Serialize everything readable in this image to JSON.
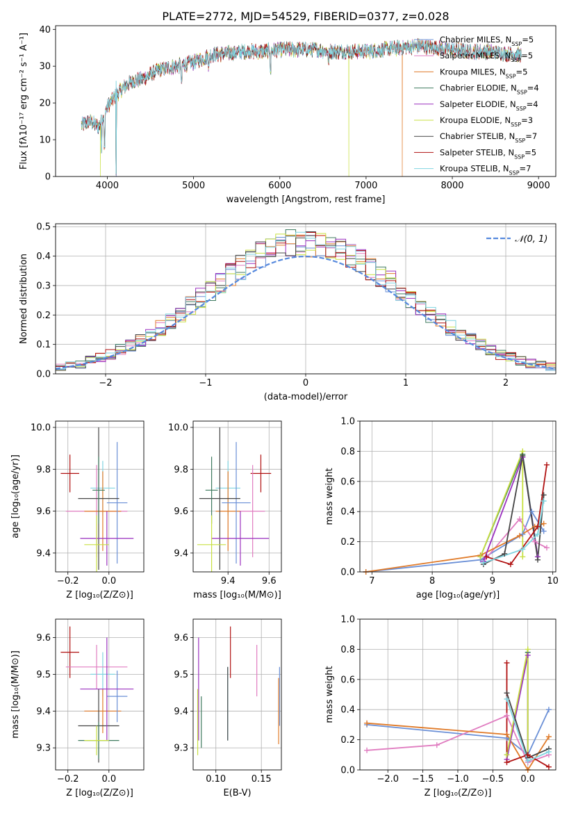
{
  "palette": {
    "Chabrier MILES": "#6a8fd6",
    "Salpeter MILES": "#e07cc0",
    "Kroupa MILES": "#e07a28",
    "Chabrier ELODIE": "#3e7a5e",
    "Salpeter ELODIE": "#9a2fbf",
    "Kroupa ELODIE": "#c8e040",
    "Chabrier STELIB": "#444444",
    "Salpeter STELIB": "#b01010",
    "Kroupa STELIB": "#7fd4e0"
  },
  "chart_data": [
    {
      "id": "spectrum",
      "type": "line",
      "title": "PLATE=2772, MJD=54529, FIBERID=0377, z=0.028",
      "xlabel": "wavelength [Angstrom, rest frame]",
      "ylabel": "Flux [fλ10⁻¹⁷ erg cm⁻² s⁻¹ A⁻¹]",
      "xlim": [
        3400,
        9200
      ],
      "ylim": [
        0,
        41
      ],
      "xticks": [
        4000,
        5000,
        6000,
        7000,
        8000,
        9000
      ],
      "yticks": [
        0,
        10,
        20,
        30,
        40
      ],
      "grid": false,
      "legend_position": "right",
      "legend": [
        "Chabrier MILES, N_SSP=5",
        "Salpeter MILES, N_SSP=5",
        "Kroupa MILES, N_SSP=5",
        "Chabrier ELODIE, N_SSP=4",
        "Salpeter ELODIE, N_SSP=4",
        "Kroupa ELODIE, N_SSP=3",
        "Chabrier STELIB, N_SSP=7",
        "Salpeter STELIB, N_SSP=5",
        "Kroupa STELIB, N_SSP=7"
      ],
      "continuum": {
        "x": [
          3700,
          3800,
          3900,
          4000,
          4100,
          4200,
          4300,
          4400,
          4600,
          4800,
          5000,
          5200,
          5400,
          5600,
          5800,
          6000,
          6200,
          6400,
          6600,
          6800,
          7000,
          7200,
          7400,
          7600,
          7800,
          8000,
          8200,
          8400,
          8600,
          8800
        ],
        "y": [
          14,
          15,
          13.5,
          19,
          22,
          24.5,
          26,
          26.5,
          29,
          30,
          31,
          33,
          33.5,
          34,
          34,
          34.5,
          34.5,
          34.5,
          34,
          34,
          34,
          34.5,
          35,
          35.5,
          35,
          34.5,
          34,
          34,
          33.5,
          33
        ]
      },
      "absorption_dips": [
        {
          "x": 3934,
          "y": 7
        },
        {
          "x": 3968,
          "y": 7
        },
        {
          "x": 4102,
          "y": 0
        },
        {
          "x": 4861,
          "y": 25
        },
        {
          "x": 5175,
          "y": 29
        },
        {
          "x": 5893,
          "y": 28
        },
        {
          "x": 6563,
          "y": 30
        }
      ],
      "artifacts": [
        {
          "x": 3920,
          "y": 0,
          "series": "Kroupa ELODIE"
        },
        {
          "x": 6800,
          "y": 0,
          "series": "Kroupa ELODIE"
        },
        {
          "x": 7420,
          "y": 0,
          "series": "Kroupa MILES"
        }
      ]
    },
    {
      "id": "residuals",
      "type": "step",
      "xlabel": "(data-model)/error",
      "ylabel": "Normed distribution",
      "xlim": [
        -2.5,
        2.5
      ],
      "ylim": [
        0,
        0.51
      ],
      "xticks": [
        -2,
        -1,
        0,
        1,
        2
      ],
      "xtick_labels": [
        "−2",
        "−1",
        "0",
        "1",
        "2"
      ],
      "yticks": [
        0.0,
        0.1,
        0.2,
        0.3,
        0.4,
        0.5
      ],
      "ytick_labels": [
        "0.0",
        "0.1",
        "0.2",
        "0.3",
        "0.4",
        "0.5"
      ],
      "grid": true,
      "legend": [
        "𝒩(0, 1)"
      ],
      "legend_position": "top-right",
      "bin_width": 0.1,
      "reference_curve": {
        "type": "normal",
        "mu": 0,
        "sigma": 1,
        "color": "#5588dd"
      }
    },
    {
      "id": "age_vs_Z",
      "type": "errorbar",
      "xlabel": "Z [log₁₀(Z/Z⊙)]",
      "ylabel": "age  [log₁₀(age/yr)]",
      "xlim": [
        -0.26,
        0.17
      ],
      "ylim": [
        9.31,
        10.03
      ],
      "xticks": [
        -0.2,
        0.0
      ],
      "xtick_labels": [
        "−0.2",
        "0.0"
      ],
      "yticks": [
        9.4,
        9.6,
        9.8,
        10.0
      ],
      "ytick_labels": [
        "9.4",
        "9.6",
        "9.8",
        "10.0"
      ],
      "grid": true,
      "points": [
        {
          "series": "Salpeter STELIB",
          "x": -0.19,
          "y": 9.78,
          "xerr": 0.045,
          "yerr": 0.09
        },
        {
          "series": "Kroupa STELIB",
          "x": -0.03,
          "y": 9.71,
          "xerr": 0.06,
          "yerr": 0.13
        },
        {
          "series": "Salpeter MILES",
          "x": -0.06,
          "y": 9.6,
          "xerr": 0.15,
          "yerr": 0.22
        },
        {
          "series": "Kroupa MILES",
          "x": -0.03,
          "y": 9.6,
          "xerr": 0.09,
          "yerr": 0.19
        },
        {
          "series": "Chabrier MILES",
          "x": 0.04,
          "y": 9.64,
          "xerr": 0.05,
          "yerr": 0.29
        },
        {
          "series": "Chabrier STELIB",
          "x": -0.05,
          "y": 9.66,
          "xerr": 0.1,
          "yerr": 0.34
        },
        {
          "series": "Chabrier ELODIE",
          "x": -0.05,
          "y": 9.7,
          "xerr": 0.03,
          "yerr": 0.16
        },
        {
          "series": "Salpeter ELODIE",
          "x": -0.01,
          "y": 9.47,
          "xerr": 0.13,
          "yerr": 0.13
        },
        {
          "series": "Kroupa ELODIE",
          "x": -0.06,
          "y": 9.44,
          "xerr": 0.06,
          "yerr": 0.14
        }
      ]
    },
    {
      "id": "age_vs_mass",
      "type": "errorbar",
      "xlabel": "mass [log₁₀(M/M⊙)]",
      "xlim": [
        9.23,
        9.66
      ],
      "ylim": [
        9.31,
        10.03
      ],
      "xticks": [
        9.4,
        9.6
      ],
      "xtick_labels": [
        "9.4",
        "9.6"
      ],
      "yticks": [
        9.4,
        9.6,
        9.8,
        10.0
      ],
      "ytick_labels": [
        "9.4",
        "9.6",
        "9.8",
        "10.0"
      ],
      "grid": true,
      "points": [
        {
          "series": "Salpeter STELIB",
          "x": 9.56,
          "y": 9.78,
          "xerr": 0.05,
          "yerr": 0.09
        },
        {
          "series": "Kroupa STELIB",
          "x": 9.4,
          "y": 9.71,
          "xerr": 0.06,
          "yerr": 0.13
        },
        {
          "series": "Salpeter MILES",
          "x": 9.52,
          "y": 9.6,
          "xerr": 0.06,
          "yerr": 0.22
        },
        {
          "series": "Kroupa MILES",
          "x": 9.4,
          "y": 9.6,
          "xerr": 0.06,
          "yerr": 0.19
        },
        {
          "series": "Chabrier MILES",
          "x": 9.44,
          "y": 9.64,
          "xerr": 0.07,
          "yerr": 0.29
        },
        {
          "series": "Chabrier STELIB",
          "x": 9.36,
          "y": 9.66,
          "xerr": 0.1,
          "yerr": 0.34
        },
        {
          "series": "Chabrier ELODIE",
          "x": 9.32,
          "y": 9.7,
          "xerr": 0.03,
          "yerr": 0.16
        },
        {
          "series": "Salpeter ELODIE",
          "x": 9.46,
          "y": 9.47,
          "xerr": 0.14,
          "yerr": 0.13
        },
        {
          "series": "Kroupa ELODIE",
          "x": 9.32,
          "y": 9.44,
          "xerr": 0.07,
          "yerr": 0.14
        }
      ]
    },
    {
      "id": "weight_vs_age",
      "type": "line",
      "xlabel": "age  [log₁₀(age/yr)]",
      "ylabel": "mass weight",
      "xlim": [
        6.8,
        10.05
      ],
      "ylim": [
        0,
        1.0
      ],
      "xticks": [
        7,
        8,
        9,
        10
      ],
      "xtick_labels": [
        "7",
        "8",
        "9",
        "10"
      ],
      "yticks": [
        0.0,
        0.2,
        0.4,
        0.6,
        0.8,
        1.0
      ],
      "ytick_labels": [
        "0.0",
        "0.2",
        "0.4",
        "0.6",
        "0.8",
        "1.0"
      ],
      "grid": true,
      "series": [
        {
          "name": "Chabrier MILES",
          "points": [
            [
              6.9,
              0.0
            ],
            [
              8.8,
              0.08
            ],
            [
              9.5,
              0.25
            ],
            [
              9.65,
              0.4
            ],
            [
              9.85,
              0.27
            ]
          ]
        },
        {
          "name": "Salpeter MILES",
          "points": [
            [
              8.85,
              0.07
            ],
            [
              9.45,
              0.35
            ],
            [
              9.7,
              0.2
            ],
            [
              9.9,
              0.16
            ]
          ]
        },
        {
          "name": "Kroupa MILES",
          "points": [
            [
              6.9,
              0.0
            ],
            [
              8.8,
              0.11
            ],
            [
              9.45,
              0.24
            ],
            [
              9.7,
              0.3
            ],
            [
              9.85,
              0.32
            ]
          ]
        },
        {
          "name": "Chabrier ELODIE",
          "points": [
            [
              8.8,
              0.1
            ],
            [
              9.5,
              0.78
            ],
            [
              9.75,
              0.1
            ]
          ]
        },
        {
          "name": "Salpeter ELODIE",
          "points": [
            [
              8.85,
              0.07
            ],
            [
              9.5,
              0.76
            ],
            [
              9.75,
              0.1
            ]
          ]
        },
        {
          "name": "Kroupa ELODIE",
          "points": [
            [
              8.8,
              0.1
            ],
            [
              9.5,
              0.8
            ],
            [
              9.5,
              0.1
            ]
          ]
        },
        {
          "name": "Chabrier STELIB",
          "points": [
            [
              8.85,
              0.05
            ],
            [
              9.2,
              0.12
            ],
            [
              9.5,
              0.77
            ],
            [
              9.75,
              0.08
            ],
            [
              9.85,
              0.51
            ]
          ]
        },
        {
          "name": "Salpeter STELIB",
          "points": [
            [
              8.9,
              0.1
            ],
            [
              9.3,
              0.05
            ],
            [
              9.75,
              0.3
            ],
            [
              9.9,
              0.71
            ]
          ]
        },
        {
          "name": "Kroupa STELIB",
          "points": [
            [
              8.85,
              0.06
            ],
            [
              9.5,
              0.15
            ],
            [
              9.75,
              0.25
            ],
            [
              9.85,
              0.47
            ]
          ]
        }
      ]
    },
    {
      "id": "mass_vs_Z",
      "type": "errorbar",
      "xlabel": "Z [log₁₀(Z/Z⊙)]",
      "ylabel": "mass [log₁₀(M/M⊙)]",
      "xlim": [
        -0.26,
        0.17
      ],
      "ylim": [
        9.24,
        9.65
      ],
      "xticks": [
        -0.2,
        0.0
      ],
      "xtick_labels": [
        "−0.2",
        "0.0"
      ],
      "yticks": [
        9.3,
        9.4,
        9.5,
        9.6
      ],
      "ytick_labels": [
        "9.3",
        "9.4",
        "9.5",
        "9.6"
      ],
      "grid": true,
      "points": [
        {
          "series": "Salpeter STELIB",
          "x": -0.19,
          "y": 9.56,
          "xerr": 0.045,
          "yerr": 0.07
        },
        {
          "series": "Kroupa STELIB",
          "x": -0.03,
          "y": 9.5,
          "xerr": 0.06,
          "yerr": 0.06
        },
        {
          "series": "Salpeter MILES",
          "x": -0.06,
          "y": 9.52,
          "xerr": 0.15,
          "yerr": 0.06
        },
        {
          "series": "Kroupa MILES",
          "x": -0.03,
          "y": 9.4,
          "xerr": 0.09,
          "yerr": 0.06
        },
        {
          "series": "Chabrier MILES",
          "x": 0.04,
          "y": 9.44,
          "xerr": 0.05,
          "yerr": 0.07
        },
        {
          "series": "Chabrier STELIB",
          "x": -0.05,
          "y": 9.36,
          "xerr": 0.1,
          "yerr": 0.1
        },
        {
          "series": "Chabrier ELODIE",
          "x": -0.05,
          "y": 9.32,
          "xerr": 0.1,
          "yerr": 0.05
        },
        {
          "series": "Salpeter ELODIE",
          "x": -0.01,
          "y": 9.46,
          "xerr": 0.13,
          "yerr": 0.14
        },
        {
          "series": "Kroupa ELODIE",
          "x": -0.06,
          "y": 9.32,
          "xerr": 0.06,
          "yerr": 0.04
        }
      ]
    },
    {
      "id": "mass_vs_ebv",
      "type": "errorbar",
      "xlabel": "E(B-V)",
      "xlim": [
        0.075,
        0.172
      ],
      "ylim": [
        9.24,
        9.65
      ],
      "xticks": [
        0.1,
        0.15
      ],
      "xtick_labels": [
        "0.10",
        "0.15"
      ],
      "yticks": [
        9.3,
        9.4,
        9.5,
        9.6
      ],
      "ytick_labels": [
        "9.3",
        "9.4",
        "9.5",
        "9.6"
      ],
      "grid": true,
      "points": [
        {
          "series": "Salpeter STELIB",
          "x": 0.116,
          "y": 9.56,
          "xerr": 0.0,
          "yerr": 0.07
        },
        {
          "series": "Kroupa STELIB",
          "x": 0.113,
          "y": 9.42,
          "xerr": 0.0,
          "yerr": 0.1
        },
        {
          "series": "Chabrier STELIB",
          "x": 0.113,
          "y": 9.42,
          "xerr": 0.0,
          "yerr": 0.1
        },
        {
          "series": "Salpeter MILES",
          "x": 0.145,
          "y": 9.51,
          "xerr": 0.0,
          "yerr": 0.07
        },
        {
          "series": "Chabrier MILES",
          "x": 0.17,
          "y": 9.44,
          "xerr": 0.0,
          "yerr": 0.08
        },
        {
          "series": "Kroupa MILES",
          "x": 0.169,
          "y": 9.4,
          "xerr": 0.0,
          "yerr": 0.09
        },
        {
          "series": "Salpeter ELODIE",
          "x": 0.081,
          "y": 9.46,
          "xerr": 0.0,
          "yerr": 0.14
        },
        {
          "series": "Kroupa ELODIE",
          "x": 0.08,
          "y": 9.37,
          "xerr": 0.0,
          "yerr": 0.09
        },
        {
          "series": "Chabrier ELODIE",
          "x": 0.084,
          "y": 9.37,
          "xerr": 0.0,
          "yerr": 0.07
        }
      ]
    },
    {
      "id": "weight_vs_Z",
      "type": "line",
      "xlabel": "Z [log₁₀(Z/Z⊙)]",
      "ylabel": "mass weight",
      "xlim": [
        -2.4,
        0.4
      ],
      "ylim": [
        0,
        1.0
      ],
      "xticks": [
        -2.0,
        -1.5,
        -1.0,
        -0.5,
        0.0
      ],
      "xtick_labels": [
        "−2.0",
        "−1.5",
        "−1.0",
        "−0.5",
        "0.0"
      ],
      "yticks": [
        0.0,
        0.2,
        0.4,
        0.6,
        0.8,
        1.0
      ],
      "ytick_labels": [
        "0.0",
        "0.2",
        "0.4",
        "0.6",
        "0.8",
        "1.0"
      ],
      "grid": true,
      "series": [
        {
          "name": "Chabrier MILES",
          "points": [
            [
              -2.3,
              0.3
            ],
            [
              -0.3,
              0.21
            ],
            [
              0.0,
              0.1
            ],
            [
              0.3,
              0.4
            ]
          ]
        },
        {
          "name": "Salpeter MILES",
          "points": [
            [
              -2.3,
              0.13
            ],
            [
              -1.3,
              0.165
            ],
            [
              -0.3,
              0.36
            ],
            [
              0.0,
              0.05
            ],
            [
              0.3,
              0.1
            ]
          ]
        },
        {
          "name": "Kroupa MILES",
          "points": [
            [
              -2.3,
              0.31
            ],
            [
              -0.3,
              0.235
            ],
            [
              0.0,
              0.0
            ],
            [
              0.3,
              0.22
            ]
          ]
        },
        {
          "name": "Chabrier ELODIE",
          "points": [
            [
              -0.3,
              0.1
            ],
            [
              0.0,
              0.78
            ],
            [
              0.0,
              0.1
            ]
          ]
        },
        {
          "name": "Salpeter ELODIE",
          "points": [
            [
              -0.3,
              0.07
            ],
            [
              0.0,
              0.76
            ],
            [
              0.0,
              0.1
            ]
          ]
        },
        {
          "name": "Kroupa ELODIE",
          "points": [
            [
              -0.3,
              0.1
            ],
            [
              0.0,
              0.8
            ],
            [
              0.0,
              0.1
            ]
          ]
        },
        {
          "name": "Chabrier STELIB",
          "points": [
            [
              -0.3,
              0.51
            ],
            [
              0.0,
              0.08
            ],
            [
              0.3,
              0.14
            ]
          ]
        },
        {
          "name": "Salpeter STELIB",
          "points": [
            [
              -0.3,
              0.71
            ],
            [
              -0.3,
              0.05
            ],
            [
              0.0,
              0.1
            ],
            [
              0.3,
              0.02
            ]
          ]
        },
        {
          "name": "Kroupa STELIB",
          "points": [
            [
              -0.3,
              0.47
            ],
            [
              0.0,
              0.06
            ],
            [
              0.3,
              0.12
            ]
          ]
        }
      ]
    }
  ]
}
